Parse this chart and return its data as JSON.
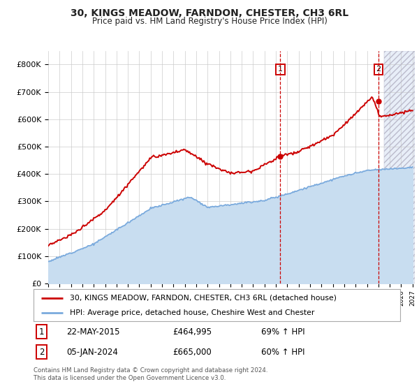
{
  "title": "30, KINGS MEADOW, FARNDON, CHESTER, CH3 6RL",
  "subtitle": "Price paid vs. HM Land Registry's House Price Index (HPI)",
  "ylim": [
    0,
    850000
  ],
  "yticks": [
    0,
    100000,
    200000,
    300000,
    400000,
    500000,
    600000,
    700000,
    800000
  ],
  "ytick_labels": [
    "£0",
    "£100K",
    "£200K",
    "£300K",
    "£400K",
    "£500K",
    "£600K",
    "£700K",
    "£800K"
  ],
  "sale_color": "#cc0000",
  "hpi_color": "#7aaadd",
  "hpi_fill_color": "#c8ddf0",
  "marker1_value": 464995,
  "marker1_year": 2015.38,
  "marker1_text": "22-MAY-2015",
  "marker1_price": "£464,995",
  "marker1_hpi": "69% ↑ HPI",
  "marker2_value": 665000,
  "marker2_year": 2024.02,
  "marker2_text": "05-JAN-2024",
  "marker2_price": "£665,000",
  "marker2_hpi": "60% ↑ HPI",
  "legend_line1": "30, KINGS MEADOW, FARNDON, CHESTER, CH3 6RL (detached house)",
  "legend_line2": "HPI: Average price, detached house, Cheshire West and Chester",
  "footnote": "Contains HM Land Registry data © Crown copyright and database right 2024.\nThis data is licensed under the Open Government Licence v3.0.",
  "background_color": "#ffffff",
  "grid_color": "#cccccc",
  "future_shade_color": "#e8eef8",
  "hatch_color": "#bbbbcc"
}
